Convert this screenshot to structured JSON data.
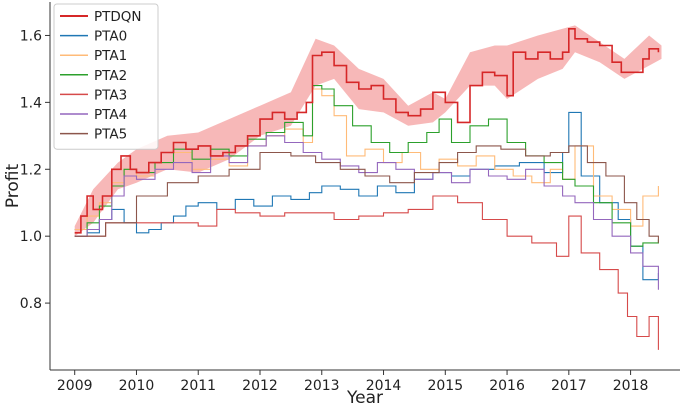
{
  "chart_data": {
    "type": "line",
    "xlabel": "Year",
    "ylabel": "Profit",
    "xlim": [
      2008.6,
      2018.8
    ],
    "ylim": [
      0.6,
      1.7
    ],
    "x_ticks": [
      2009,
      2010,
      2011,
      2012,
      2013,
      2014,
      2015,
      2016,
      2017,
      2018
    ],
    "x_tick_labels": [
      "2009",
      "2010",
      "2011",
      "2012",
      "2013",
      "2014",
      "2015",
      "2016",
      "2017",
      "2018"
    ],
    "y_ticks": [
      0.8,
      1.0,
      1.2,
      1.4,
      1.6
    ],
    "y_tick_labels": [
      "0.8",
      "1.0",
      "1.2",
      "1.4",
      "1.6"
    ],
    "legend_position": "top-left",
    "band": {
      "series": "PTDQN",
      "color": "#f4a0a0",
      "x": [
        2009.0,
        2009.3,
        2009.7,
        2010.0,
        2010.5,
        2011.0,
        2011.5,
        2012.0,
        2012.5,
        2012.9,
        2013.2,
        2013.6,
        2014.0,
        2014.4,
        2014.8,
        2015.0,
        2015.4,
        2015.8,
        2016.0,
        2016.5,
        2016.9,
        2017.1,
        2017.5,
        2017.9,
        2018.3,
        2018.5
      ],
      "lower": [
        1.0,
        1.04,
        1.14,
        1.16,
        1.2,
        1.19,
        1.23,
        1.3,
        1.33,
        1.45,
        1.47,
        1.38,
        1.37,
        1.33,
        1.34,
        1.37,
        1.45,
        1.45,
        1.41,
        1.47,
        1.5,
        1.55,
        1.52,
        1.47,
        1.51,
        1.53
      ],
      "upper": [
        1.03,
        1.14,
        1.22,
        1.26,
        1.3,
        1.31,
        1.35,
        1.39,
        1.43,
        1.59,
        1.57,
        1.5,
        1.47,
        1.39,
        1.43,
        1.41,
        1.55,
        1.57,
        1.57,
        1.6,
        1.62,
        1.63,
        1.58,
        1.53,
        1.6,
        1.57
      ]
    },
    "series": [
      {
        "name": "PTDQN",
        "color": "#d62728",
        "width": 1.6,
        "x": [
          2009.0,
          2009.1,
          2009.2,
          2009.3,
          2009.45,
          2009.6,
          2009.75,
          2009.9,
          2010.0,
          2010.2,
          2010.4,
          2010.6,
          2010.8,
          2011.0,
          2011.2,
          2011.4,
          2011.6,
          2011.8,
          2012.0,
          2012.2,
          2012.4,
          2012.6,
          2012.75,
          2012.85,
          2013.0,
          2013.2,
          2013.4,
          2013.6,
          2013.8,
          2014.0,
          2014.2,
          2014.4,
          2014.6,
          2014.8,
          2015.0,
          2015.2,
          2015.4,
          2015.6,
          2015.8,
          2016.0,
          2016.1,
          2016.3,
          2016.5,
          2016.7,
          2016.9,
          2017.0,
          2017.1,
          2017.3,
          2017.5,
          2017.7,
          2017.85,
          2018.0,
          2018.2,
          2018.3,
          2018.45
        ],
        "y": [
          1.01,
          1.06,
          1.12,
          1.08,
          1.12,
          1.2,
          1.24,
          1.2,
          1.19,
          1.22,
          1.25,
          1.28,
          1.26,
          1.27,
          1.24,
          1.25,
          1.27,
          1.3,
          1.35,
          1.37,
          1.35,
          1.37,
          1.4,
          1.54,
          1.55,
          1.51,
          1.46,
          1.44,
          1.45,
          1.41,
          1.37,
          1.36,
          1.38,
          1.43,
          1.4,
          1.34,
          1.45,
          1.49,
          1.48,
          1.42,
          1.55,
          1.53,
          1.55,
          1.53,
          1.55,
          1.62,
          1.59,
          1.58,
          1.57,
          1.52,
          1.49,
          1.49,
          1.53,
          1.56,
          1.55
        ]
      },
      {
        "name": "PTA0",
        "color": "#1f77b4",
        "width": 1.1,
        "x": [
          2009.0,
          2009.2,
          2009.4,
          2009.6,
          2009.8,
          2010.0,
          2010.2,
          2010.4,
          2010.6,
          2010.8,
          2011.0,
          2011.3,
          2011.6,
          2011.9,
          2012.2,
          2012.5,
          2012.8,
          2013.0,
          2013.3,
          2013.6,
          2013.9,
          2014.2,
          2014.5,
          2014.8,
          2015.1,
          2015.4,
          2015.8,
          2016.2,
          2016.6,
          2016.9,
          2017.0,
          2017.2,
          2017.5,
          2017.8,
          2018.0,
          2018.2,
          2018.45
        ],
        "y": [
          1.02,
          1.01,
          1.05,
          1.08,
          1.04,
          1.01,
          1.02,
          1.04,
          1.06,
          1.09,
          1.1,
          1.08,
          1.11,
          1.09,
          1.12,
          1.11,
          1.13,
          1.15,
          1.14,
          1.12,
          1.15,
          1.13,
          1.17,
          1.19,
          1.18,
          1.2,
          1.21,
          1.22,
          1.19,
          1.25,
          1.37,
          1.18,
          1.1,
          1.05,
          0.97,
          0.87,
          0.89
        ]
      },
      {
        "name": "PTA1",
        "color": "#ffbb78",
        "width": 1.1,
        "x": [
          2009.0,
          2009.2,
          2009.4,
          2009.6,
          2009.8,
          2010.0,
          2010.3,
          2010.6,
          2010.9,
          2011.2,
          2011.5,
          2011.8,
          2012.1,
          2012.4,
          2012.7,
          2012.85,
          2013.0,
          2013.2,
          2013.4,
          2013.7,
          2014.0,
          2014.3,
          2014.6,
          2014.9,
          2015.2,
          2015.5,
          2015.8,
          2016.1,
          2016.4,
          2016.7,
          2016.9,
          2017.1,
          2017.4,
          2017.7,
          2018.0,
          2018.2,
          2018.45
        ],
        "y": [
          1.02,
          1.06,
          1.1,
          1.16,
          1.2,
          1.18,
          1.22,
          1.25,
          1.2,
          1.23,
          1.21,
          1.27,
          1.3,
          1.32,
          1.28,
          1.44,
          1.42,
          1.36,
          1.24,
          1.26,
          1.22,
          1.25,
          1.2,
          1.23,
          1.21,
          1.24,
          1.2,
          1.18,
          1.16,
          1.2,
          1.17,
          1.27,
          1.12,
          1.08,
          1.03,
          1.12,
          1.15
        ]
      },
      {
        "name": "PTA2",
        "color": "#2ca02c",
        "width": 1.1,
        "x": [
          2009.0,
          2009.2,
          2009.4,
          2009.6,
          2009.8,
          2010.0,
          2010.3,
          2010.6,
          2010.9,
          2011.2,
          2011.5,
          2011.8,
          2012.1,
          2012.4,
          2012.7,
          2012.85,
          2013.0,
          2013.2,
          2013.5,
          2013.8,
          2014.1,
          2014.4,
          2014.7,
          2014.9,
          2015.1,
          2015.4,
          2015.7,
          2016.0,
          2016.3,
          2016.6,
          2016.9,
          2017.1,
          2017.4,
          2017.7,
          2018.0,
          2018.2,
          2018.45
        ],
        "y": [
          1.0,
          1.04,
          1.09,
          1.15,
          1.2,
          1.19,
          1.22,
          1.26,
          1.23,
          1.26,
          1.24,
          1.29,
          1.31,
          1.34,
          1.3,
          1.45,
          1.44,
          1.39,
          1.33,
          1.28,
          1.25,
          1.28,
          1.31,
          1.35,
          1.28,
          1.33,
          1.35,
          1.28,
          1.24,
          1.22,
          1.17,
          1.15,
          1.1,
          1.04,
          0.97,
          0.98,
          0.99
        ]
      },
      {
        "name": "PTA3",
        "color": "#d64a4a",
        "width": 1.1,
        "x": [
          2009.0,
          2009.5,
          2010.0,
          2010.5,
          2011.0,
          2011.3,
          2011.6,
          2012.0,
          2012.4,
          2012.8,
          2013.2,
          2013.6,
          2014.0,
          2014.4,
          2014.8,
          2015.2,
          2015.6,
          2016.0,
          2016.4,
          2016.8,
          2017.0,
          2017.2,
          2017.5,
          2017.8,
          2017.95,
          2018.1,
          2018.3,
          2018.45
        ],
        "y": [
          1.0,
          1.04,
          1.04,
          1.04,
          1.03,
          1.08,
          1.07,
          1.06,
          1.07,
          1.07,
          1.05,
          1.06,
          1.07,
          1.08,
          1.12,
          1.1,
          1.05,
          1.0,
          0.98,
          0.94,
          1.06,
          0.95,
          0.9,
          0.83,
          0.76,
          0.7,
          0.76,
          0.66
        ]
      },
      {
        "name": "PTA4",
        "color": "#9467bd",
        "width": 1.1,
        "x": [
          2009.0,
          2009.2,
          2009.4,
          2009.6,
          2009.8,
          2010.0,
          2010.3,
          2010.6,
          2010.9,
          2011.2,
          2011.5,
          2011.8,
          2012.1,
          2012.4,
          2012.7,
          2013.0,
          2013.3,
          2013.6,
          2013.9,
          2014.2,
          2014.5,
          2014.8,
          2015.1,
          2015.4,
          2015.7,
          2016.0,
          2016.3,
          2016.6,
          2016.9,
          2017.1,
          2017.4,
          2017.7,
          2018.0,
          2018.2,
          2018.45
        ],
        "y": [
          1.0,
          1.02,
          1.05,
          1.12,
          1.18,
          1.17,
          1.2,
          1.22,
          1.19,
          1.24,
          1.22,
          1.27,
          1.3,
          1.28,
          1.25,
          1.23,
          1.21,
          1.19,
          1.22,
          1.2,
          1.17,
          1.19,
          1.16,
          1.2,
          1.18,
          1.17,
          1.2,
          1.15,
          1.12,
          1.1,
          1.05,
          1.0,
          0.95,
          0.91,
          0.84
        ]
      },
      {
        "name": "PTA5",
        "color": "#8c564b",
        "width": 1.1,
        "x": [
          2009.0,
          2009.5,
          2010.0,
          2010.5,
          2011.0,
          2011.5,
          2012.0,
          2012.5,
          2012.9,
          2013.3,
          2013.7,
          2014.1,
          2014.5,
          2014.9,
          2015.2,
          2015.5,
          2015.9,
          2016.3,
          2016.7,
          2017.0,
          2017.3,
          2017.6,
          2017.9,
          2018.1,
          2018.3,
          2018.45
        ],
        "y": [
          1.0,
          1.04,
          1.12,
          1.16,
          1.18,
          1.2,
          1.25,
          1.24,
          1.22,
          1.2,
          1.18,
          1.16,
          1.19,
          1.22,
          1.25,
          1.27,
          1.26,
          1.24,
          1.25,
          1.27,
          1.22,
          1.18,
          1.1,
          1.05,
          1.0,
          0.98
        ]
      }
    ]
  }
}
